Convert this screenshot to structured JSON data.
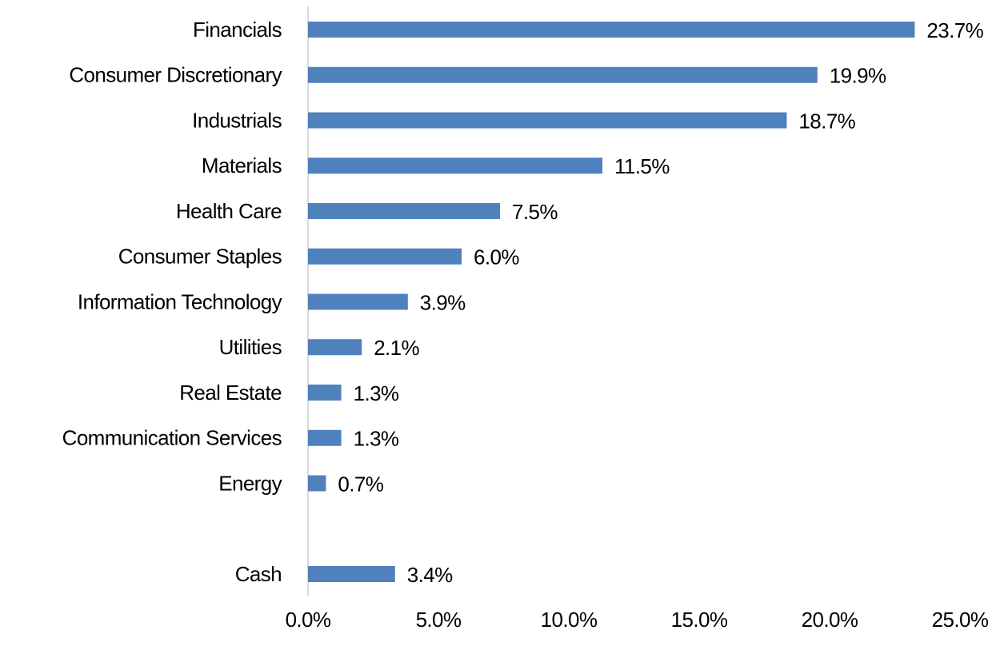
{
  "chart_data": {
    "type": "barh",
    "categories": [
      "Financials",
      "Consumer Discretionary",
      "Industrials",
      "Materials",
      "Health Care",
      "Consumer Staples",
      "Information Technology",
      "Utilities",
      "Real Estate",
      "Communication Services",
      "Energy",
      null,
      "Cash"
    ],
    "values": [
      23.7,
      19.9,
      18.7,
      11.5,
      7.5,
      6.0,
      3.9,
      2.1,
      1.3,
      1.3,
      0.7,
      null,
      3.4
    ],
    "value_labels": [
      "23.7%",
      "19.9%",
      "18.7%",
      "11.5%",
      "7.5%",
      "6.0%",
      "3.9%",
      "2.1%",
      "1.3%",
      "1.3%",
      "0.7%",
      null,
      "3.4%"
    ],
    "color": "#4f81bd",
    "xlim": [
      0,
      25
    ],
    "xticks": [
      {
        "value": 0,
        "label": "0.0%"
      },
      {
        "value": 5,
        "label": "5.0%"
      },
      {
        "value": 10,
        "label": "10.0%"
      },
      {
        "value": 15,
        "label": "15.0%"
      },
      {
        "value": 20,
        "label": "20.0%"
      },
      {
        "value": 25,
        "label": "25.0%"
      }
    ],
    "grid": false
  }
}
